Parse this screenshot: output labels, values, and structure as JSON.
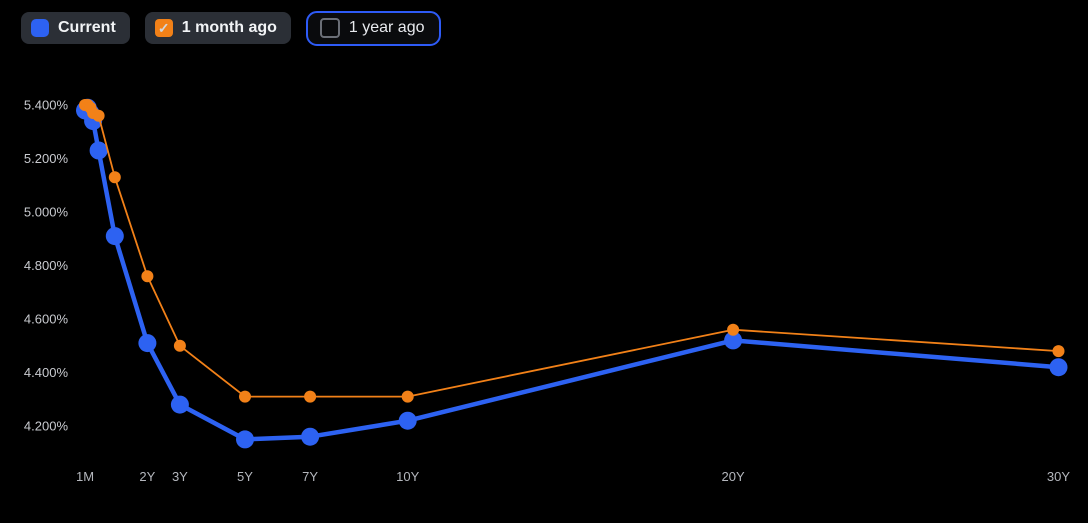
{
  "colors": {
    "background": "#000000",
    "button_background": "#2b2f36",
    "focus_ring": "#2e5bf7",
    "axis_text_y": "#c9cbd0",
    "axis_text_x": "#b4b7bd",
    "series_current": "#2d62f2",
    "series_one_month_ago": "#f28118"
  },
  "legend": {
    "check_glyph": "✓",
    "buttons": [
      {
        "label": "Current",
        "checked": true,
        "focused": false,
        "swatch_style": "solid",
        "swatch_color": "#2d62f2"
      },
      {
        "label": "1 month ago",
        "checked": true,
        "focused": false,
        "swatch_style": "checkbox-checked",
        "swatch_color": "#f28118"
      },
      {
        "label": "1 year ago",
        "checked": false,
        "focused": true,
        "swatch_style": "checkbox-empty",
        "swatch_color": null
      }
    ]
  },
  "chart_data": {
    "type": "line",
    "title": "",
    "xlabel": "",
    "ylabel": "",
    "grid": false,
    "legend_position": "top-left",
    "x_axis": {
      "scale": "linear-years",
      "ticks": [
        {
          "label": "1M",
          "years": 0.0833
        },
        {
          "label": "2Y",
          "years": 2
        },
        {
          "label": "3Y",
          "years": 3
        },
        {
          "label": "5Y",
          "years": 5
        },
        {
          "label": "7Y",
          "years": 7
        },
        {
          "label": "10Y",
          "years": 10
        },
        {
          "label": "20Y",
          "years": 20
        },
        {
          "label": "30Y",
          "years": 30
        }
      ]
    },
    "y_axis": {
      "unit": "percent",
      "range": [
        4.08,
        5.46
      ],
      "ticks": [
        {
          "value": 5.4,
          "label": "5.400%"
        },
        {
          "value": 5.2,
          "label": "5.200%"
        },
        {
          "value": 5.0,
          "label": "5.000%"
        },
        {
          "value": 4.8,
          "label": "4.800%"
        },
        {
          "value": 4.6,
          "label": "4.600%"
        },
        {
          "value": 4.4,
          "label": "4.400%"
        },
        {
          "value": 4.2,
          "label": "4.200%"
        }
      ]
    },
    "series": [
      {
        "name": "Current",
        "color": "#2d62f2",
        "points": [
          {
            "maturity": "1M",
            "years": 0.0833,
            "yield_pct": 5.38
          },
          {
            "maturity": "2M",
            "years": 0.1667,
            "yield_pct": 5.39
          },
          {
            "maturity": "3M",
            "years": 0.25,
            "yield_pct": 5.37
          },
          {
            "maturity": "4M",
            "years": 0.3333,
            "yield_pct": 5.34
          },
          {
            "maturity": "6M",
            "years": 0.5,
            "yield_pct": 5.23
          },
          {
            "maturity": "1Y",
            "years": 1,
            "yield_pct": 4.91
          },
          {
            "maturity": "2Y",
            "years": 2,
            "yield_pct": 4.51
          },
          {
            "maturity": "3Y",
            "years": 3,
            "yield_pct": 4.28
          },
          {
            "maturity": "5Y",
            "years": 5,
            "yield_pct": 4.15
          },
          {
            "maturity": "7Y",
            "years": 7,
            "yield_pct": 4.16
          },
          {
            "maturity": "10Y",
            "years": 10,
            "yield_pct": 4.22
          },
          {
            "maturity": "20Y",
            "years": 20,
            "yield_pct": 4.52
          },
          {
            "maturity": "30Y",
            "years": 30,
            "yield_pct": 4.42
          }
        ]
      },
      {
        "name": "1 month ago",
        "color": "#f28118",
        "points": [
          {
            "maturity": "1M",
            "years": 0.0833,
            "yield_pct": 5.4
          },
          {
            "maturity": "2M",
            "years": 0.1667,
            "yield_pct": 5.4
          },
          {
            "maturity": "3M",
            "years": 0.25,
            "yield_pct": 5.39
          },
          {
            "maturity": "4M",
            "years": 0.3333,
            "yield_pct": 5.37
          },
          {
            "maturity": "6M",
            "years": 0.5,
            "yield_pct": 5.36
          },
          {
            "maturity": "1Y",
            "years": 1,
            "yield_pct": 5.13
          },
          {
            "maturity": "2Y",
            "years": 2,
            "yield_pct": 4.76
          },
          {
            "maturity": "3Y",
            "years": 3,
            "yield_pct": 4.5
          },
          {
            "maturity": "5Y",
            "years": 5,
            "yield_pct": 4.31
          },
          {
            "maturity": "7Y",
            "years": 7,
            "yield_pct": 4.31
          },
          {
            "maturity": "10Y",
            "years": 10,
            "yield_pct": 4.31
          },
          {
            "maturity": "20Y",
            "years": 20,
            "yield_pct": 4.56
          },
          {
            "maturity": "30Y",
            "years": 30,
            "yield_pct": 4.48
          }
        ]
      }
    ],
    "hidden_series": [
      {
        "name": "1 year ago",
        "visible": false
      }
    ]
  }
}
